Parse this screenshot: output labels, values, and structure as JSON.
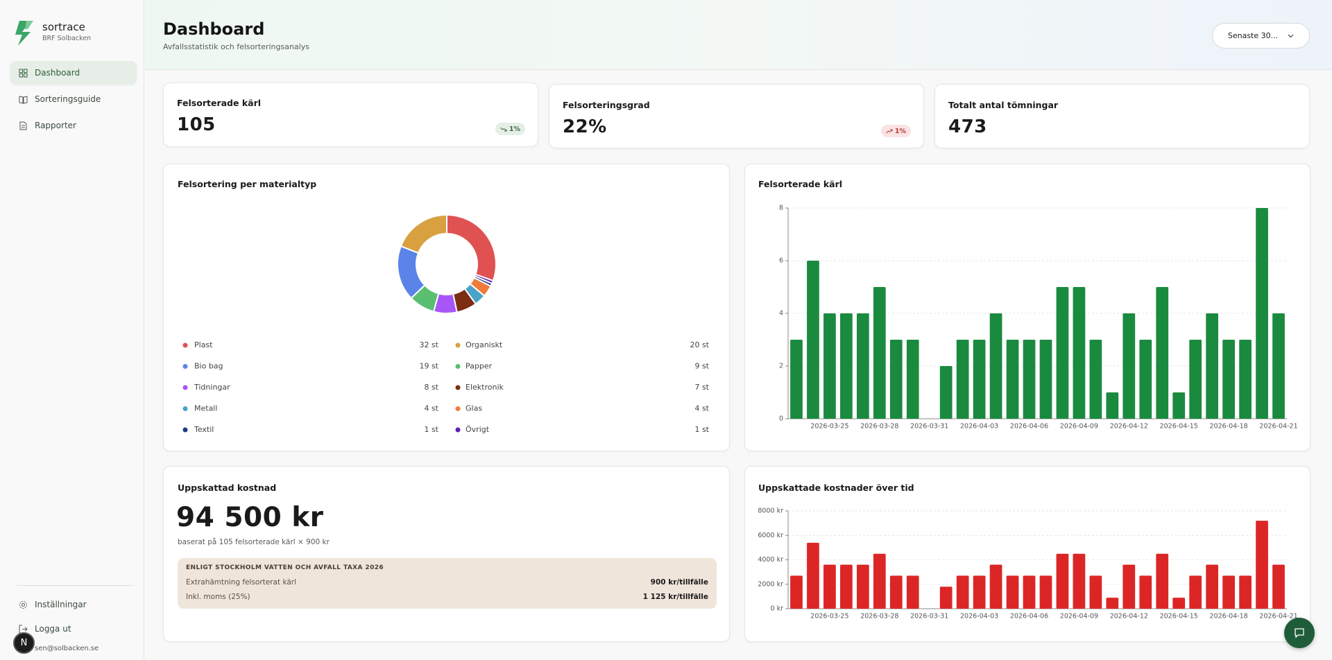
{
  "sidebar": {
    "brand": "sortrace",
    "org": "BRF Solbacken",
    "nav": [
      "Dashboard",
      "Sorteringsguide",
      "Rapporter"
    ],
    "settings": "Inställningar",
    "logout": "Logga ut",
    "email": "sen@solbacken.se",
    "avatar": "N"
  },
  "header": {
    "title": "Dashboard",
    "subtitle": "Avfallsstatistik och felsorteringsanalys",
    "range": "Senaste 30..."
  },
  "kpis": [
    {
      "label": "Felsorterade kärl",
      "value": 105,
      "trend": "1%"
    },
    {
      "label": "Felsorteringsgrad",
      "value": "22%",
      "trend": "1%"
    },
    {
      "label": "Totalt antal tömningar",
      "value": 473
    }
  ],
  "chart_data": [
    {
      "type": "pie",
      "title": "Felsortering per materialtyp",
      "categories": [
        "Plast",
        "Organiskt",
        "Bio bag",
        "Papper",
        "Tidningar",
        "Elektronik",
        "Metall",
        "Glas",
        "Textil",
        "Övrigt"
      ],
      "values": [
        32,
        20,
        19,
        9,
        8,
        7,
        4,
        4,
        1,
        1
      ],
      "value_labels": [
        "32 st",
        "20 st",
        "19 st",
        "9 st",
        "8 st",
        "7 st",
        "4 st",
        "4 st",
        "1 st",
        "1 st"
      ],
      "colors": [
        "#e05252",
        "#d9a040",
        "#5b84e8",
        "#5bbf72",
        "#a855f7",
        "#7c2d12",
        "#4aa3c8",
        "#f07c3c",
        "#1e3a8a",
        "#5b21b6"
      ]
    },
    {
      "type": "bar",
      "title": "Felsorterade kärl",
      "categories": [
        null,
        null,
        "2026-03-25",
        null,
        null,
        "2026-03-28",
        null,
        null,
        "2026-03-31",
        null,
        null,
        "2026-04-03",
        null,
        null,
        "2026-04-06",
        null,
        null,
        "2026-04-09",
        null,
        null,
        "2026-04-12",
        null,
        null,
        "2026-04-15",
        null,
        null,
        "2026-04-18",
        null,
        null,
        "2026-04-21"
      ],
      "values": [
        3,
        6,
        4,
        4,
        4,
        5,
        3,
        3,
        0,
        2,
        3,
        3,
        4,
        3,
        3,
        3,
        5,
        5,
        3,
        1,
        4,
        3,
        5,
        1,
        3,
        4,
        3,
        3,
        8,
        4
      ],
      "color": "#1a8a3f",
      "ylim": [
        0,
        8
      ],
      "yticks": [
        0,
        2,
        4,
        6,
        8
      ],
      "grid": true
    },
    {
      "type": "bar",
      "title": "Uppskattade kostnader över tid",
      "categories": [
        null,
        null,
        "2026-03-25",
        null,
        null,
        "2026-03-28",
        null,
        null,
        "2026-03-31",
        null,
        null,
        "2026-04-03",
        null,
        null,
        "2026-04-06",
        null,
        null,
        "2026-04-09",
        null,
        null,
        "2026-04-12",
        null,
        null,
        "2026-04-15",
        null,
        null,
        "2026-04-18",
        null,
        null,
        "2026-04-21"
      ],
      "values": [
        2700,
        5400,
        3600,
        3600,
        3600,
        4500,
        2700,
        2700,
        0,
        1800,
        2700,
        2700,
        3600,
        2700,
        2700,
        2700,
        4500,
        4500,
        2700,
        900,
        3600,
        2700,
        4500,
        900,
        2700,
        3600,
        2700,
        2700,
        7200,
        3600
      ],
      "color": "#dc2626",
      "ylim": [
        0,
        8000
      ],
      "yticks": [
        {
          "value": 0,
          "label": "0 kr"
        },
        {
          "value": 2000,
          "label": "2000 kr"
        },
        {
          "value": 4000,
          "label": "4000 kr"
        },
        {
          "value": 6000,
          "label": "6000 kr"
        },
        {
          "value": 8000,
          "label": "8000 kr"
        }
      ],
      "grid": true
    }
  ],
  "cost": {
    "title": "Uppskattad kostnad",
    "value": "94 500 kr",
    "basis": "baserat på 105 felsorterade kärl × 900 kr",
    "tariff_title": "ENLIGT STOCKHOLM VATTEN OCH AVFALL TAXA 2026",
    "rows": [
      [
        "Extrahämtning felsorterat kärl",
        "900 kr/tillfälle"
      ],
      [
        "Inkl. moms (25%)",
        "1 125 kr/tillfälle"
      ]
    ]
  }
}
